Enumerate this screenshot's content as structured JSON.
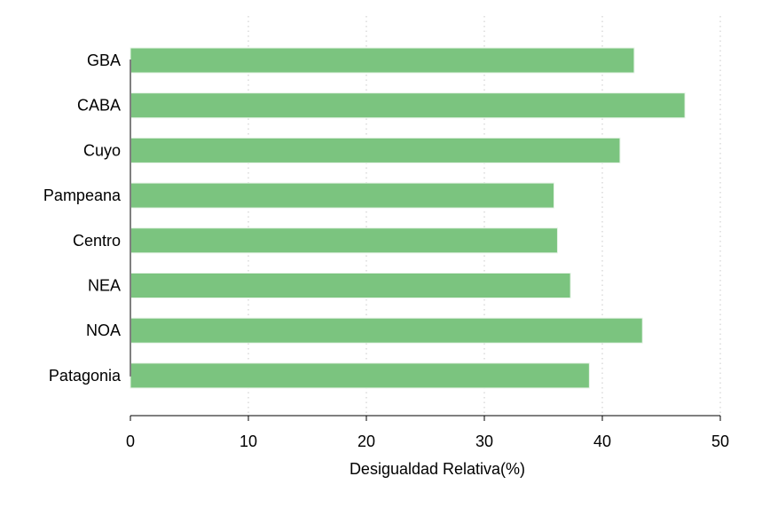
{
  "chart_data": {
    "type": "bar",
    "orientation": "horizontal",
    "categories": [
      "GBA",
      "CABA",
      "Cuyo",
      "Pampeana",
      "Centro",
      "NEA",
      "NOA",
      "Patagonia"
    ],
    "values": [
      42.7,
      47.0,
      41.5,
      35.9,
      36.2,
      37.3,
      43.4,
      38.9
    ],
    "title": "",
    "xlabel": "Desigualdad Relativa(%)",
    "ylabel": "",
    "xlim": [
      0,
      50
    ],
    "xticks": [
      0,
      10,
      20,
      30,
      40,
      50
    ],
    "grid": "vertical-dotted",
    "bar_color": "#7bc47f"
  }
}
